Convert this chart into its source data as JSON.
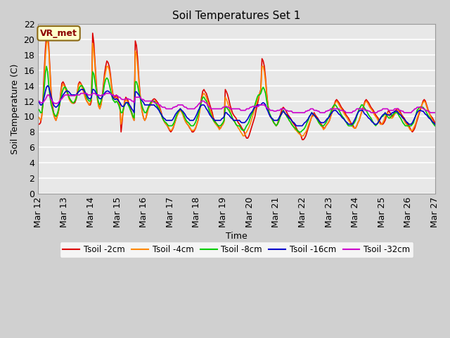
{
  "title": "Soil Temperatures Set 1",
  "xlabel": "Time",
  "ylabel": "Soil Temperature (C)",
  "ylim": [
    0,
    22
  ],
  "yticks": [
    0,
    2,
    4,
    6,
    8,
    10,
    12,
    14,
    16,
    18,
    20,
    22
  ],
  "annotation": "VR_met",
  "series_colors": {
    "t2cm": "#dd0000",
    "t4cm": "#ff8800",
    "t8cm": "#00cc00",
    "t16cm": "#0000cc",
    "t32cm": "#cc00cc"
  },
  "series_labels": [
    "Tsoil -2cm",
    "Tsoil -4cm",
    "Tsoil -8cm",
    "Tsoil -16cm",
    "Tsoil -32cm"
  ],
  "x_labels": [
    "Mar 12",
    "Mar 13",
    "Mar 14",
    "Mar 15",
    "Mar 16",
    "Mar 17",
    "Mar 18",
    "Mar 19",
    "Mar 20",
    "Mar 21",
    "Mar 22",
    "Mar 23",
    "Mar 24",
    "Mar 25",
    "Mar 26",
    "Mar 27"
  ],
  "plot_facecolor": "#e8e8e8",
  "fig_facecolor": "#d0d0d0",
  "grid_color": "white",
  "lw": 1.2,
  "t2cm": [
    9.0,
    9.0,
    9.2,
    10.0,
    12.0,
    15.5,
    18.5,
    20.5,
    20.8,
    19.0,
    16.0,
    13.0,
    11.5,
    10.5,
    9.8,
    9.5,
    10.0,
    10.5,
    11.5,
    13.0,
    14.3,
    14.5,
    14.2,
    13.8,
    13.5,
    13.0,
    12.5,
    12.2,
    12.0,
    11.8,
    11.7,
    11.8,
    12.2,
    13.0,
    14.2,
    14.5,
    14.3,
    14.0,
    13.5,
    13.0,
    12.5,
    12.0,
    11.8,
    11.5,
    11.5,
    12.0,
    20.8,
    19.5,
    17.0,
    14.5,
    12.5,
    11.5,
    11.0,
    11.5,
    12.5,
    14.0,
    15.5,
    16.5,
    17.2,
    17.0,
    16.5,
    15.5,
    14.0,
    13.0,
    12.5,
    12.5,
    12.8,
    12.5,
    12.0,
    11.5,
    8.0,
    9.5,
    11.0,
    12.0,
    12.5,
    12.3,
    12.0,
    11.5,
    11.0,
    10.5,
    10.0,
    9.5,
    19.8,
    19.2,
    17.5,
    15.0,
    13.0,
    11.5,
    10.5,
    9.8,
    9.5,
    9.8,
    10.5,
    11.2,
    11.5,
    11.8,
    12.0,
    12.2,
    12.3,
    12.2,
    12.0,
    11.8,
    11.5,
    11.0,
    10.5,
    9.8,
    9.5,
    9.2,
    9.0,
    8.8,
    8.5,
    8.2,
    8.0,
    8.2,
    8.5,
    9.0,
    9.5,
    10.0,
    10.5,
    10.8,
    11.0,
    10.8,
    10.5,
    10.0,
    9.5,
    9.2,
    9.0,
    8.8,
    8.5,
    8.3,
    8.0,
    8.0,
    8.2,
    8.5,
    9.0,
    9.5,
    10.5,
    11.5,
    12.5,
    13.3,
    13.5,
    13.2,
    13.0,
    12.5,
    12.0,
    11.5,
    11.0,
    10.5,
    9.8,
    9.5,
    9.2,
    9.0,
    8.8,
    8.5,
    8.5,
    8.8,
    9.0,
    9.5,
    13.5,
    13.2,
    12.8,
    12.2,
    11.5,
    11.0,
    10.5,
    10.2,
    10.0,
    9.8,
    9.5,
    9.2,
    9.0,
    8.8,
    8.5,
    8.3,
    8.0,
    7.5,
    7.2,
    7.2,
    7.5,
    8.0,
    8.5,
    9.0,
    9.5,
    10.0,
    10.8,
    11.5,
    12.2,
    13.0,
    13.5,
    17.5,
    17.2,
    16.5,
    15.0,
    13.0,
    11.5,
    10.5,
    10.0,
    9.8,
    9.5,
    9.2,
    9.0,
    8.8,
    9.0,
    9.5,
    10.0,
    10.5,
    11.0,
    11.2,
    11.0,
    10.8,
    10.5,
    10.2,
    10.0,
    9.8,
    9.5,
    9.2,
    9.0,
    8.8,
    8.5,
    8.2,
    8.0,
    7.8,
    7.5,
    7.0,
    7.0,
    7.2,
    7.5,
    8.0,
    8.5,
    9.0,
    9.5,
    10.0,
    10.2,
    10.5,
    10.2,
    10.0,
    9.8,
    9.5,
    9.2,
    9.0,
    8.8,
    8.5,
    8.5,
    8.8,
    9.0,
    9.2,
    9.5,
    10.0,
    10.5,
    11.0,
    11.5,
    12.0,
    12.2,
    12.0,
    11.8,
    11.5,
    11.2,
    11.0,
    10.8,
    10.5,
    10.2,
    10.0,
    9.8,
    9.5,
    9.2,
    9.0,
    8.8,
    8.5,
    8.5,
    8.8,
    9.2,
    9.5,
    10.0,
    10.5,
    11.0,
    11.5,
    12.0,
    12.2,
    12.0,
    11.8,
    11.5,
    11.2,
    11.0,
    10.8,
    10.5,
    10.2,
    10.0,
    9.8,
    9.5,
    9.2,
    9.0,
    9.0,
    9.2,
    9.5,
    10.0,
    10.5,
    10.8,
    10.5,
    10.2,
    10.0,
    10.2,
    10.5,
    10.8,
    11.0,
    11.0,
    10.8,
    10.5,
    10.2,
    10.0,
    9.8,
    9.5,
    9.2,
    9.0,
    8.8,
    8.5,
    8.2,
    8.0,
    8.2,
    8.5,
    9.0,
    9.5,
    10.0,
    10.5,
    11.0,
    11.5,
    12.0,
    12.2,
    12.0,
    11.5,
    11.0,
    10.5,
    10.2,
    10.0,
    9.8,
    9.5,
    9.2
  ],
  "t4cm": [
    10.0,
    9.8,
    9.5,
    10.0,
    11.5,
    14.5,
    17.5,
    19.5,
    20.0,
    18.5,
    15.5,
    12.5,
    11.0,
    10.2,
    9.8,
    9.5,
    10.0,
    10.5,
    11.5,
    12.8,
    13.8,
    14.2,
    14.0,
    13.5,
    13.2,
    12.8,
    12.3,
    12.0,
    11.8,
    11.7,
    11.8,
    12.0,
    12.5,
    13.2,
    14.0,
    14.3,
    14.2,
    13.8,
    13.3,
    12.8,
    12.3,
    12.0,
    11.8,
    11.5,
    11.8,
    12.2,
    19.5,
    18.5,
    16.5,
    14.0,
    12.2,
    11.3,
    11.0,
    11.5,
    12.3,
    13.5,
    15.0,
    15.8,
    16.5,
    16.5,
    16.0,
    15.0,
    13.8,
    12.8,
    12.3,
    12.2,
    12.5,
    12.2,
    11.8,
    11.2,
    9.0,
    9.8,
    11.0,
    11.8,
    12.2,
    12.0,
    11.8,
    11.3,
    10.8,
    10.3,
    9.8,
    9.5,
    18.5,
    18.0,
    16.5,
    14.5,
    12.8,
    11.3,
    10.5,
    9.8,
    9.5,
    9.8,
    10.3,
    11.0,
    11.3,
    11.5,
    11.8,
    12.0,
    12.0,
    12.0,
    11.8,
    11.5,
    11.2,
    10.8,
    10.3,
    9.8,
    9.5,
    9.2,
    9.0,
    8.8,
    8.6,
    8.3,
    8.2,
    8.3,
    8.6,
    9.0,
    9.5,
    10.0,
    10.3,
    10.6,
    10.8,
    10.6,
    10.3,
    9.8,
    9.5,
    9.2,
    9.0,
    8.8,
    8.6,
    8.3,
    8.2,
    8.2,
    8.3,
    8.6,
    9.0,
    9.5,
    10.3,
    11.2,
    12.0,
    12.8,
    13.0,
    12.8,
    12.5,
    12.0,
    11.5,
    11.0,
    10.5,
    10.0,
    9.5,
    9.2,
    9.0,
    8.8,
    8.6,
    8.3,
    8.5,
    8.8,
    9.0,
    9.3,
    12.5,
    12.2,
    11.8,
    11.3,
    10.8,
    10.3,
    9.8,
    9.5,
    9.3,
    9.0,
    8.8,
    8.5,
    8.3,
    8.0,
    7.8,
    7.5,
    7.5,
    7.8,
    8.0,
    8.3,
    8.6,
    9.0,
    9.5,
    10.0,
    10.5,
    11.0,
    11.5,
    12.0,
    12.5,
    13.0,
    13.3,
    16.5,
    16.5,
    15.8,
    14.5,
    12.8,
    11.5,
    10.5,
    10.0,
    9.8,
    9.5,
    9.2,
    9.0,
    8.8,
    9.0,
    9.3,
    9.8,
    10.2,
    10.5,
    10.8,
    10.5,
    10.3,
    10.0,
    9.8,
    9.5,
    9.3,
    9.0,
    8.8,
    8.6,
    8.3,
    8.2,
    8.0,
    7.8,
    7.7,
    7.5,
    7.5,
    7.5,
    7.8,
    8.0,
    8.3,
    8.8,
    9.2,
    9.5,
    10.0,
    10.0,
    10.3,
    10.0,
    9.8,
    9.5,
    9.2,
    9.0,
    8.8,
    8.6,
    8.3,
    8.5,
    8.8,
    9.0,
    9.2,
    9.5,
    10.0,
    10.5,
    11.0,
    11.3,
    11.8,
    12.0,
    11.8,
    11.5,
    11.2,
    11.0,
    10.8,
    10.5,
    10.2,
    10.0,
    9.8,
    9.5,
    9.3,
    9.0,
    8.8,
    8.6,
    8.5,
    8.5,
    8.8,
    9.2,
    9.5,
    10.0,
    10.5,
    11.0,
    11.3,
    11.8,
    12.0,
    11.8,
    11.5,
    11.2,
    11.0,
    10.8,
    10.5,
    10.2,
    10.0,
    9.8,
    9.5,
    9.2,
    9.0,
    9.0,
    9.2,
    9.5,
    10.0,
    10.2,
    10.5,
    10.2,
    10.0,
    9.8,
    9.8,
    10.0,
    10.3,
    10.5,
    10.8,
    10.8,
    10.5,
    10.3,
    10.0,
    9.8,
    9.5,
    9.2,
    9.0,
    8.8,
    8.6,
    8.3,
    8.2,
    8.2,
    8.5,
    8.8,
    9.2,
    9.8,
    10.2,
    10.8,
    11.2,
    11.5,
    11.8,
    12.0,
    11.8,
    11.3,
    10.8,
    10.5,
    10.2,
    9.8,
    9.5,
    9.2,
    9.0
  ],
  "t8cm": [
    11.0,
    10.8,
    10.5,
    10.5,
    11.5,
    13.5,
    15.5,
    16.5,
    15.8,
    14.0,
    12.5,
    11.5,
    11.0,
    10.5,
    10.2,
    10.0,
    10.3,
    10.8,
    11.5,
    12.3,
    13.0,
    13.5,
    13.8,
    13.8,
    13.5,
    13.0,
    12.5,
    12.2,
    12.0,
    11.8,
    11.8,
    12.0,
    12.3,
    12.8,
    13.3,
    13.8,
    14.0,
    14.0,
    13.8,
    13.5,
    13.0,
    12.5,
    12.2,
    12.0,
    12.0,
    12.5,
    15.8,
    15.5,
    14.5,
    13.5,
    12.5,
    11.8,
    11.5,
    12.0,
    12.5,
    13.2,
    14.2,
    14.8,
    15.0,
    14.8,
    14.2,
    13.5,
    12.8,
    12.2,
    12.0,
    11.8,
    12.0,
    11.8,
    11.5,
    11.0,
    10.5,
    10.5,
    11.0,
    11.5,
    11.8,
    11.8,
    11.5,
    11.2,
    10.8,
    10.5,
    10.0,
    9.8,
    14.5,
    14.5,
    14.0,
    13.2,
    12.5,
    11.8,
    11.2,
    10.8,
    10.5,
    10.5,
    10.8,
    11.2,
    11.5,
    11.8,
    12.0,
    12.0,
    12.0,
    11.8,
    11.5,
    11.2,
    11.0,
    10.5,
    10.2,
    9.8,
    9.5,
    9.3,
    9.2,
    9.0,
    8.8,
    8.8,
    8.8,
    8.8,
    9.0,
    9.3,
    9.8,
    10.2,
    10.5,
    10.8,
    11.0,
    10.8,
    10.5,
    10.2,
    9.8,
    9.5,
    9.3,
    9.2,
    9.0,
    8.8,
    8.8,
    8.8,
    9.0,
    9.3,
    9.8,
    10.2,
    10.8,
    11.5,
    12.0,
    12.5,
    12.5,
    12.2,
    12.0,
    11.5,
    11.0,
    10.5,
    10.2,
    9.8,
    9.5,
    9.3,
    9.2,
    9.0,
    8.8,
    8.8,
    8.8,
    9.0,
    9.2,
    9.5,
    11.2,
    11.2,
    11.0,
    10.8,
    10.5,
    10.2,
    9.8,
    9.5,
    9.3,
    9.0,
    8.8,
    8.8,
    8.8,
    8.5,
    8.3,
    8.2,
    8.2,
    8.5,
    8.8,
    9.0,
    9.3,
    9.8,
    10.2,
    10.5,
    11.0,
    11.5,
    12.0,
    12.5,
    12.8,
    12.8,
    13.0,
    13.5,
    13.8,
    13.5,
    13.0,
    12.0,
    11.2,
    10.5,
    10.2,
    9.8,
    9.5,
    9.2,
    9.0,
    8.8,
    9.0,
    9.3,
    9.8,
    10.2,
    10.5,
    10.8,
    10.5,
    10.3,
    10.0,
    9.8,
    9.5,
    9.3,
    9.0,
    8.8,
    8.6,
    8.5,
    8.3,
    8.2,
    8.0,
    8.0,
    8.0,
    8.2,
    8.3,
    8.5,
    8.8,
    9.2,
    9.5,
    10.0,
    10.2,
    10.5,
    10.3,
    10.2,
    10.0,
    9.8,
    9.5,
    9.2,
    9.0,
    8.8,
    8.8,
    8.8,
    9.0,
    9.2,
    9.5,
    9.8,
    10.2,
    10.5,
    11.0,
    11.3,
    11.5,
    11.5,
    11.3,
    11.0,
    10.8,
    10.5,
    10.2,
    10.0,
    9.8,
    9.5,
    9.3,
    9.0,
    8.8,
    8.8,
    8.8,
    8.8,
    9.0,
    9.2,
    9.5,
    10.0,
    10.5,
    11.0,
    11.2,
    11.5,
    11.5,
    11.2,
    11.0,
    10.8,
    10.5,
    10.2,
    10.0,
    9.8,
    9.5,
    9.2,
    9.0,
    8.8,
    9.0,
    9.2,
    9.5,
    9.8,
    10.0,
    10.0,
    10.2,
    10.3,
    10.2,
    10.0,
    9.8,
    9.8,
    10.0,
    10.2,
    10.3,
    10.5,
    10.5,
    10.5,
    10.3,
    10.0,
    9.8,
    9.5,
    9.2,
    9.0,
    8.8,
    8.8,
    8.8,
    8.8,
    8.8,
    8.8,
    9.0,
    9.2,
    9.8,
    10.2,
    10.8,
    11.0,
    11.2,
    11.2,
    11.2,
    11.2,
    11.0,
    10.8,
    10.5,
    10.2,
    10.0,
    9.8,
    9.5,
    9.2,
    9.0,
    8.8
  ],
  "t16cm": [
    12.0,
    11.8,
    11.5,
    11.5,
    11.8,
    12.5,
    13.2,
    13.8,
    14.0,
    13.8,
    13.2,
    12.5,
    12.0,
    11.5,
    11.3,
    11.2,
    11.3,
    11.5,
    11.8,
    12.2,
    12.5,
    12.8,
    13.0,
    13.2,
    13.3,
    13.3,
    13.2,
    13.0,
    12.8,
    12.8,
    12.8,
    12.8,
    12.8,
    13.0,
    13.2,
    13.3,
    13.5,
    13.5,
    13.5,
    13.3,
    13.0,
    12.8,
    12.5,
    12.3,
    12.3,
    12.5,
    13.5,
    13.5,
    13.3,
    13.0,
    12.8,
    12.5,
    12.3,
    12.3,
    12.5,
    12.8,
    13.0,
    13.2,
    13.3,
    13.3,
    13.2,
    13.0,
    12.8,
    12.5,
    12.3,
    12.2,
    12.3,
    12.2,
    12.0,
    11.8,
    11.5,
    11.3,
    11.3,
    11.5,
    11.8,
    11.8,
    11.8,
    11.5,
    11.3,
    11.0,
    10.8,
    10.5,
    13.2,
    13.2,
    13.0,
    12.8,
    12.5,
    12.2,
    12.0,
    11.8,
    11.5,
    11.5,
    11.5,
    11.5,
    11.5,
    11.5,
    11.5,
    11.5,
    11.5,
    11.3,
    11.2,
    11.0,
    10.8,
    10.5,
    10.3,
    10.0,
    9.8,
    9.7,
    9.5,
    9.5,
    9.5,
    9.5,
    9.5,
    9.5,
    9.7,
    10.0,
    10.3,
    10.5,
    10.7,
    10.8,
    11.0,
    10.8,
    10.7,
    10.5,
    10.3,
    10.0,
    9.8,
    9.7,
    9.5,
    9.5,
    9.5,
    9.5,
    9.7,
    10.0,
    10.3,
    10.7,
    11.0,
    11.3,
    11.5,
    11.5,
    11.5,
    11.3,
    11.0,
    10.8,
    10.5,
    10.2,
    10.0,
    9.8,
    9.7,
    9.5,
    9.5,
    9.5,
    9.5,
    9.5,
    9.5,
    9.7,
    9.8,
    10.0,
    10.5,
    10.5,
    10.3,
    10.2,
    10.0,
    9.8,
    9.7,
    9.5,
    9.5,
    9.5,
    9.5,
    9.5,
    9.5,
    9.3,
    9.2,
    9.2,
    9.2,
    9.3,
    9.5,
    9.7,
    10.0,
    10.3,
    10.5,
    10.7,
    11.0,
    11.2,
    11.3,
    11.5,
    11.5,
    11.5,
    11.5,
    11.7,
    11.8,
    11.7,
    11.5,
    11.0,
    10.7,
    10.3,
    10.0,
    9.8,
    9.7,
    9.5,
    9.5,
    9.5,
    9.5,
    9.7,
    10.0,
    10.2,
    10.5,
    10.7,
    10.5,
    10.3,
    10.2,
    10.0,
    9.8,
    9.7,
    9.5,
    9.3,
    9.2,
    9.0,
    8.8,
    8.8,
    8.8,
    8.8,
    8.8,
    8.8,
    9.0,
    9.2,
    9.3,
    9.5,
    9.7,
    10.0,
    10.2,
    10.5,
    10.3,
    10.2,
    10.0,
    9.8,
    9.7,
    9.5,
    9.3,
    9.2,
    9.2,
    9.2,
    9.3,
    9.5,
    9.7,
    9.8,
    10.0,
    10.3,
    10.5,
    10.7,
    10.8,
    10.8,
    10.7,
    10.5,
    10.3,
    10.2,
    10.0,
    9.8,
    9.7,
    9.5,
    9.3,
    9.2,
    9.0,
    9.0,
    9.0,
    9.0,
    9.2,
    9.5,
    9.8,
    10.2,
    10.5,
    10.7,
    10.8,
    10.8,
    10.8,
    10.5,
    10.3,
    10.2,
    10.0,
    9.8,
    9.7,
    9.5,
    9.3,
    9.2,
    9.0,
    9.0,
    9.0,
    9.2,
    9.5,
    9.7,
    10.0,
    10.2,
    10.3,
    10.5,
    10.3,
    10.2,
    10.2,
    10.2,
    10.3,
    10.5,
    10.5,
    10.7,
    10.7,
    10.7,
    10.5,
    10.3,
    10.2,
    10.0,
    9.8,
    9.7,
    9.5,
    9.3,
    9.2,
    9.0,
    9.0,
    9.0,
    9.2,
    9.5,
    9.8,
    10.2,
    10.5,
    10.7,
    10.8,
    10.8,
    10.7,
    10.7,
    10.5,
    10.3,
    10.2,
    10.0,
    9.8,
    9.7,
    9.5,
    9.3,
    9.2,
    9.0
  ],
  "t32cm": [
    12.0,
    12.0,
    11.8,
    11.8,
    11.8,
    12.0,
    12.2,
    12.5,
    12.8,
    12.8,
    12.5,
    12.2,
    12.0,
    11.8,
    11.7,
    11.7,
    11.7,
    11.8,
    12.0,
    12.2,
    12.3,
    12.5,
    12.7,
    12.8,
    12.8,
    12.8,
    12.8,
    12.7,
    12.7,
    12.7,
    12.7,
    12.7,
    12.8,
    12.8,
    12.8,
    12.8,
    13.0,
    13.0,
    13.0,
    13.0,
    13.0,
    13.0,
    12.8,
    12.8,
    12.8,
    12.8,
    13.0,
    13.0,
    13.0,
    12.8,
    12.8,
    12.8,
    12.7,
    12.7,
    12.8,
    12.8,
    12.8,
    13.0,
    13.0,
    13.0,
    13.0,
    13.0,
    12.8,
    12.8,
    12.7,
    12.7,
    12.7,
    12.7,
    12.5,
    12.5,
    12.3,
    12.2,
    12.2,
    12.2,
    12.3,
    12.3,
    12.3,
    12.2,
    12.2,
    12.0,
    12.0,
    11.8,
    12.5,
    12.5,
    12.5,
    12.5,
    12.5,
    12.3,
    12.2,
    12.2,
    12.0,
    12.0,
    12.0,
    12.0,
    12.0,
    12.0,
    12.0,
    12.0,
    11.8,
    11.8,
    11.7,
    11.7,
    11.5,
    11.5,
    11.3,
    11.2,
    11.2,
    11.2,
    11.0,
    11.0,
    11.0,
    11.0,
    11.0,
    11.0,
    11.2,
    11.2,
    11.3,
    11.3,
    11.5,
    11.5,
    11.5,
    11.5,
    11.5,
    11.3,
    11.2,
    11.2,
    11.0,
    11.0,
    11.0,
    11.0,
    11.0,
    11.0,
    11.0,
    11.2,
    11.3,
    11.5,
    11.7,
    11.8,
    12.0,
    12.0,
    12.0,
    11.8,
    11.8,
    11.5,
    11.3,
    11.2,
    11.0,
    11.0,
    11.0,
    11.0,
    11.0,
    11.0,
    11.0,
    11.0,
    11.0,
    11.0,
    11.2,
    11.2,
    11.3,
    11.3,
    11.2,
    11.2,
    11.0,
    11.0,
    11.0,
    11.0,
    11.0,
    11.0,
    11.0,
    11.0,
    11.0,
    10.8,
    10.8,
    10.8,
    10.8,
    10.8,
    11.0,
    11.0,
    11.0,
    11.2,
    11.2,
    11.3,
    11.3,
    11.3,
    11.3,
    11.3,
    11.3,
    11.5,
    11.5,
    11.5,
    11.5,
    11.5,
    11.3,
    11.2,
    11.0,
    11.0,
    10.8,
    10.8,
    10.8,
    10.7,
    10.7,
    10.7,
    10.8,
    10.8,
    10.8,
    11.0,
    11.0,
    11.0,
    11.0,
    10.8,
    10.8,
    10.7,
    10.7,
    10.7,
    10.7,
    10.5,
    10.5,
    10.5,
    10.5,
    10.5,
    10.5,
    10.5,
    10.5,
    10.5,
    10.5,
    10.5,
    10.7,
    10.7,
    10.8,
    10.8,
    11.0,
    11.0,
    11.0,
    10.8,
    10.8,
    10.8,
    10.7,
    10.7,
    10.5,
    10.5,
    10.5,
    10.5,
    10.5,
    10.7,
    10.7,
    10.8,
    10.8,
    11.0,
    11.0,
    11.0,
    11.0,
    11.0,
    11.0,
    11.0,
    11.0,
    10.8,
    10.8,
    10.8,
    10.7,
    10.7,
    10.5,
    10.5,
    10.5,
    10.5,
    10.5,
    10.5,
    10.7,
    10.7,
    10.8,
    11.0,
    11.0,
    11.0,
    11.0,
    11.0,
    11.0,
    11.0,
    10.8,
    10.8,
    10.8,
    10.7,
    10.7,
    10.5,
    10.5,
    10.5,
    10.5,
    10.5,
    10.5,
    10.7,
    10.7,
    10.8,
    10.8,
    11.0,
    11.0,
    11.0,
    11.0,
    11.0,
    10.8,
    10.8,
    10.8,
    10.8,
    10.8,
    11.0,
    11.0,
    11.0,
    11.0,
    10.8,
    10.8,
    10.7,
    10.7,
    10.5,
    10.5,
    10.5,
    10.5,
    10.5,
    10.5,
    10.5,
    10.7,
    10.8,
    11.0,
    11.0,
    11.2,
    11.2,
    11.2,
    11.2,
    11.2,
    11.0,
    11.0,
    10.8,
    10.8,
    10.7,
    10.7,
    10.5,
    10.5,
    10.5,
    10.5,
    10.5
  ]
}
